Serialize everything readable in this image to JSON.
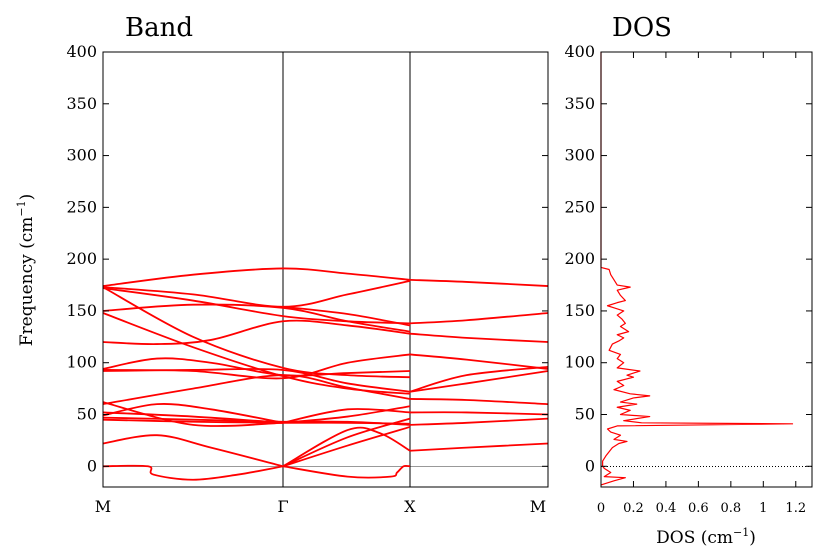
{
  "chart_data": [
    {
      "type": "line",
      "title": "Band",
      "xlabel": "",
      "ylabel": "Frequency (cm⁻¹)",
      "ylabel_main": "Frequency (cm",
      "ylabel_sup": "−1",
      "ylabel_close": ")",
      "ylim": [
        -20,
        400
      ],
      "yticks": [
        0,
        50,
        100,
        150,
        200,
        250,
        300,
        350,
        400
      ],
      "path_labels": [
        "M",
        "Γ",
        "X",
        "M"
      ],
      "grid": false,
      "line_color": "#ff0000",
      "zero_line_color": "#999999",
      "segment_x": [
        0,
        1.0,
        1.59,
        2.59
      ],
      "series": [
        {
          "points": [
            [
              0,
              0
            ],
            [
              0.25,
              0
            ],
            [
              0.28,
              -8
            ],
            [
              0.5,
              -13
            ],
            [
              0.75,
              -8
            ],
            [
              1.0,
              0
            ]
          ]
        },
        {
          "points": [
            [
              1.0,
              0
            ],
            [
              1.3,
              -10
            ],
            [
              1.5,
              -10
            ],
            [
              1.53,
              -6
            ],
            [
              1.56,
              0
            ],
            [
              1.59,
              0
            ]
          ]
        },
        {
          "points": [
            [
              0,
              22
            ],
            [
              0.3,
              30
            ],
            [
              0.6,
              18
            ],
            [
              1.0,
              0
            ]
          ]
        },
        {
          "points": [
            [
              1.0,
              0
            ],
            [
              1.3,
              28
            ],
            [
              1.59,
              46
            ]
          ]
        },
        {
          "points": [
            [
              1.0,
              0
            ],
            [
              1.3,
              20
            ],
            [
              1.59,
              38
            ]
          ]
        },
        {
          "points": [
            [
              1.0,
              0
            ],
            [
              1.3,
              35
            ],
            [
              1.45,
              32
            ],
            [
              1.59,
              15
            ]
          ]
        },
        {
          "points": [
            [
              1.59,
              15
            ],
            [
              2.0,
              18
            ],
            [
              2.59,
              22
            ]
          ]
        },
        {
          "points": [
            [
              0,
              45
            ],
            [
              0.5,
              43
            ],
            [
              1.0,
              42
            ],
            [
              1.3,
              42
            ],
            [
              1.59,
              41
            ]
          ]
        },
        {
          "points": [
            [
              0,
              47
            ],
            [
              0.5,
              45
            ],
            [
              1.0,
              43
            ],
            [
              1.3,
              43
            ],
            [
              1.59,
              40
            ]
          ]
        },
        {
          "points": [
            [
              1.59,
              40
            ],
            [
              2.0,
              42
            ],
            [
              2.59,
              46
            ]
          ]
        },
        {
          "points": [
            [
              0,
              49
            ],
            [
              0.3,
              60
            ],
            [
              0.6,
              55
            ],
            [
              1.0,
              42
            ]
          ]
        },
        {
          "points": [
            [
              0,
              52
            ],
            [
              0.5,
              48
            ],
            [
              1.0,
              42
            ]
          ]
        },
        {
          "points": [
            [
              1.0,
              42
            ],
            [
              1.3,
              55
            ],
            [
              1.59,
              52
            ]
          ]
        },
        {
          "points": [
            [
              1.59,
              52
            ],
            [
              2.0,
              52
            ],
            [
              2.59,
              50
            ]
          ]
        },
        {
          "points": [
            [
              0,
              60
            ],
            [
              0.5,
              75
            ],
            [
              1.0,
              88
            ],
            [
              1.3,
              76
            ],
            [
              1.59,
              65
            ]
          ]
        },
        {
          "points": [
            [
              1.59,
              65
            ],
            [
              2.0,
              64
            ],
            [
              2.59,
              60
            ]
          ]
        },
        {
          "points": [
            [
              0,
              62
            ],
            [
              0.5,
              40
            ],
            [
              1.0,
              42
            ]
          ]
        },
        {
          "points": [
            [
              1.0,
              42
            ],
            [
              1.3,
              48
            ],
            [
              1.59,
              58
            ]
          ]
        },
        {
          "points": [
            [
              0,
              92
            ],
            [
              0.5,
              93
            ],
            [
              1.0,
              93
            ],
            [
              1.3,
              80
            ],
            [
              1.59,
              72
            ]
          ]
        },
        {
          "points": [
            [
              1.59,
              72
            ],
            [
              2.0,
              80
            ],
            [
              2.59,
              92
            ]
          ]
        },
        {
          "points": [
            [
              0,
              94
            ],
            [
              0.3,
              104
            ],
            [
              0.6,
              100
            ],
            [
              1.0,
              88
            ],
            [
              1.3,
              90
            ],
            [
              1.59,
              92
            ]
          ]
        },
        {
          "points": [
            [
              0,
              93
            ],
            [
              0.5,
              92
            ],
            [
              1.0,
              85
            ],
            [
              1.3,
              100
            ],
            [
              1.59,
              108
            ]
          ]
        },
        {
          "points": [
            [
              1.59,
              108
            ],
            [
              2.0,
              103
            ],
            [
              2.59,
              94
            ]
          ]
        },
        {
          "points": [
            [
              1.59,
              72
            ],
            [
              2.0,
              88
            ],
            [
              2.59,
              96
            ]
          ]
        },
        {
          "points": [
            [
              0,
              120
            ],
            [
              0.3,
              118
            ],
            [
              0.6,
              122
            ],
            [
              1.0,
              140
            ],
            [
              1.3,
              136
            ],
            [
              1.59,
              128
            ]
          ]
        },
        {
          "points": [
            [
              1.59,
              128
            ],
            [
              2.0,
              124
            ],
            [
              2.59,
              120
            ]
          ]
        },
        {
          "points": [
            [
              0,
              148
            ],
            [
              0.5,
              115
            ],
            [
              1.0,
              87
            ],
            [
              1.3,
              75
            ],
            [
              1.59,
              70
            ]
          ]
        },
        {
          "points": [
            [
              0,
              172
            ],
            [
              0.5,
              160
            ],
            [
              1.0,
              145
            ],
            [
              1.3,
              140
            ],
            [
              1.59,
              138
            ]
          ]
        },
        {
          "points": [
            [
              1.59,
              138
            ],
            [
              2.0,
              141
            ],
            [
              2.59,
              148
            ]
          ]
        },
        {
          "points": [
            [
              0,
              173
            ],
            [
              0.5,
              125
            ],
            [
              1.0,
              95
            ],
            [
              1.3,
              88
            ],
            [
              1.59,
              86
            ]
          ]
        },
        {
          "points": [
            [
              0,
              150
            ],
            [
              0.5,
              156
            ],
            [
              1.0,
              153
            ],
            [
              1.3,
              140
            ],
            [
              1.59,
              130
            ]
          ]
        },
        {
          "points": [
            [
              0,
              173
            ],
            [
              0.5,
              166
            ],
            [
              1.0,
              154
            ],
            [
              1.3,
              166
            ],
            [
              1.59,
              179
            ]
          ]
        },
        {
          "points": [
            [
              1.0,
              154
            ],
            [
              1.3,
              147
            ],
            [
              1.59,
              136
            ]
          ]
        },
        {
          "points": [
            [
              0,
              174
            ],
            [
              0.5,
              185
            ],
            [
              1.0,
              191
            ],
            [
              1.3,
              186
            ],
            [
              1.59,
              180
            ]
          ]
        },
        {
          "points": [
            [
              1.59,
              180
            ],
            [
              2.0,
              178
            ],
            [
              2.59,
              174
            ]
          ]
        }
      ]
    },
    {
      "type": "line",
      "title": "DOS",
      "xlabel": "DOS (cm⁻¹)",
      "xlabel_main": "DOS (cm",
      "xlabel_sup": "−1",
      "xlabel_close": ")",
      "ylabel": "",
      "xlim": [
        0,
        1.3
      ],
      "ylim": [
        -20,
        400
      ],
      "xticks": [
        0,
        0.2,
        0.4,
        0.6,
        0.8,
        1,
        1.2
      ],
      "yticks": [
        0,
        50,
        100,
        150,
        200,
        250,
        300,
        350,
        400
      ],
      "grid": false,
      "line_color": "#ff0000",
      "series": [
        {
          "points": [
            [
              0.0,
              -18
            ],
            [
              0.08,
              -14
            ],
            [
              0.15,
              -11
            ],
            [
              0.02,
              -10
            ],
            [
              0.06,
              -6
            ],
            [
              0.02,
              -2
            ],
            [
              0.01,
              0
            ],
            [
              0.01,
              5
            ],
            [
              0.03,
              10
            ],
            [
              0.05,
              14
            ],
            [
              0.07,
              18
            ],
            [
              0.11,
              22
            ],
            [
              0.16,
              24
            ],
            [
              0.08,
              26
            ],
            [
              0.12,
              30
            ],
            [
              0.06,
              33
            ],
            [
              0.04,
              36
            ],
            [
              0.1,
              39
            ],
            [
              1.18,
              41
            ],
            [
              0.25,
              42
            ],
            [
              0.14,
              44
            ],
            [
              0.3,
              48
            ],
            [
              0.12,
              50
            ],
            [
              0.18,
              54
            ],
            [
              0.1,
              57
            ],
            [
              0.22,
              60
            ],
            [
              0.12,
              62
            ],
            [
              0.2,
              66
            ],
            [
              0.3,
              68
            ],
            [
              0.18,
              70
            ],
            [
              0.08,
              74
            ],
            [
              0.14,
              78
            ],
            [
              0.1,
              82
            ],
            [
              0.2,
              86
            ],
            [
              0.16,
              88
            ],
            [
              0.24,
              92
            ],
            [
              0.1,
              95
            ],
            [
              0.14,
              100
            ],
            [
              0.1,
              104
            ],
            [
              0.12,
              108
            ],
            [
              0.05,
              112
            ],
            [
              0.07,
              118
            ],
            [
              0.11,
              121
            ],
            [
              0.14,
              124
            ],
            [
              0.1,
              127
            ],
            [
              0.17,
              130
            ],
            [
              0.12,
              135
            ],
            [
              0.15,
              138
            ],
            [
              0.13,
              142
            ],
            [
              0.1,
              146
            ],
            [
              0.14,
              150
            ],
            [
              0.08,
              153
            ],
            [
              0.04,
              155
            ],
            [
              0.1,
              158
            ],
            [
              0.15,
              160
            ],
            [
              0.12,
              165
            ],
            [
              0.1,
              170
            ],
            [
              0.18,
              173
            ],
            [
              0.1,
              175
            ],
            [
              0.08,
              180
            ],
            [
              0.06,
              185
            ],
            [
              0.05,
              190
            ],
            [
              0.0,
              192
            ],
            [
              0.0,
              200
            ],
            [
              0.0,
              300
            ],
            [
              0.0,
              400
            ]
          ]
        }
      ]
    }
  ]
}
